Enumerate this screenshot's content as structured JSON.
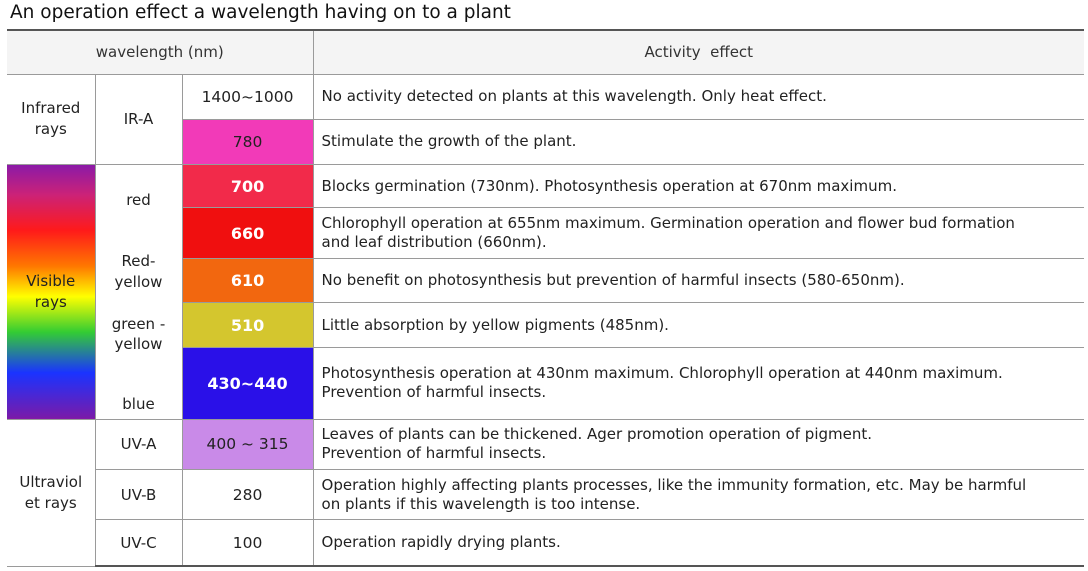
{
  "title": "An operation effect a wavelength having on to a plant",
  "header": {
    "wavelength": "wavelength (nm)",
    "effect": "Activity  effect"
  },
  "colors": {
    "c780": "#f23ab8",
    "c700": "#f22a4a",
    "c660": "#f00f0f",
    "c610": "#f2670f",
    "c510": "#d4c62e",
    "c430": "#2a10e8",
    "c400": "#c98ae8"
  },
  "infrared": {
    "category_line1": "Infrared",
    "category_line2": "rays",
    "subgroup": "IR-A",
    "rows": [
      {
        "wavelength": "1400~1000",
        "effect": "No activity detected on plants at this wavelength. Only heat effect."
      },
      {
        "wavelength": "780",
        "effect": "Stimulate the growth of the plant."
      }
    ]
  },
  "visible": {
    "category_line1": "Visible",
    "category_line2": "rays",
    "labels": {
      "red": "red",
      "red_yellow_line1": "Red-",
      "red_yellow_line2": "yellow",
      "green_yellow_line1": "green -",
      "green_yellow_line2": "yellow",
      "blue": "blue"
    },
    "rows": [
      {
        "wavelength": "700",
        "effect_lines": [
          "Blocks germination (730nm). Photosynthesis operation at 670nm maximum."
        ]
      },
      {
        "wavelength": "660",
        "effect_lines": [
          "Chlorophyll operation at 655nm maximum. Germination operation and flower bud formation",
          "and leaf distribution (660nm)."
        ]
      },
      {
        "wavelength": "610",
        "effect_lines": [
          "No benefit on photosynthesis but prevention of harmful insects (580-650nm)."
        ]
      },
      {
        "wavelength": "510",
        "effect_lines": [
          "Little absorption by yellow pigments (485nm)."
        ]
      },
      {
        "wavelength": "430~440",
        "effect_lines": [
          "Photosynthesis operation at 430nm maximum. Chlorophyll operation at 440nm maximum.",
          "Prevention of harmful insects."
        ]
      }
    ]
  },
  "ultraviolet": {
    "category_line1": "Ultraviol",
    "category_line2": "et rays",
    "rows": [
      {
        "subgroup": "UV-A",
        "wavelength": "400 ~ 315",
        "effect_lines": [
          "Leaves of plants can be thickened. Ager promotion operation of pigment.",
          "Prevention of harmful insects."
        ]
      },
      {
        "subgroup": "UV-B",
        "wavelength": "280",
        "effect_lines": [
          "Operation highly affecting plants processes, like the immunity formation, etc. May be harmful",
          "on plants if this wavelength is too intense."
        ]
      },
      {
        "subgroup": "UV-C",
        "wavelength": "100",
        "effect_lines": [
          "Operation rapidly drying plants."
        ]
      }
    ]
  }
}
